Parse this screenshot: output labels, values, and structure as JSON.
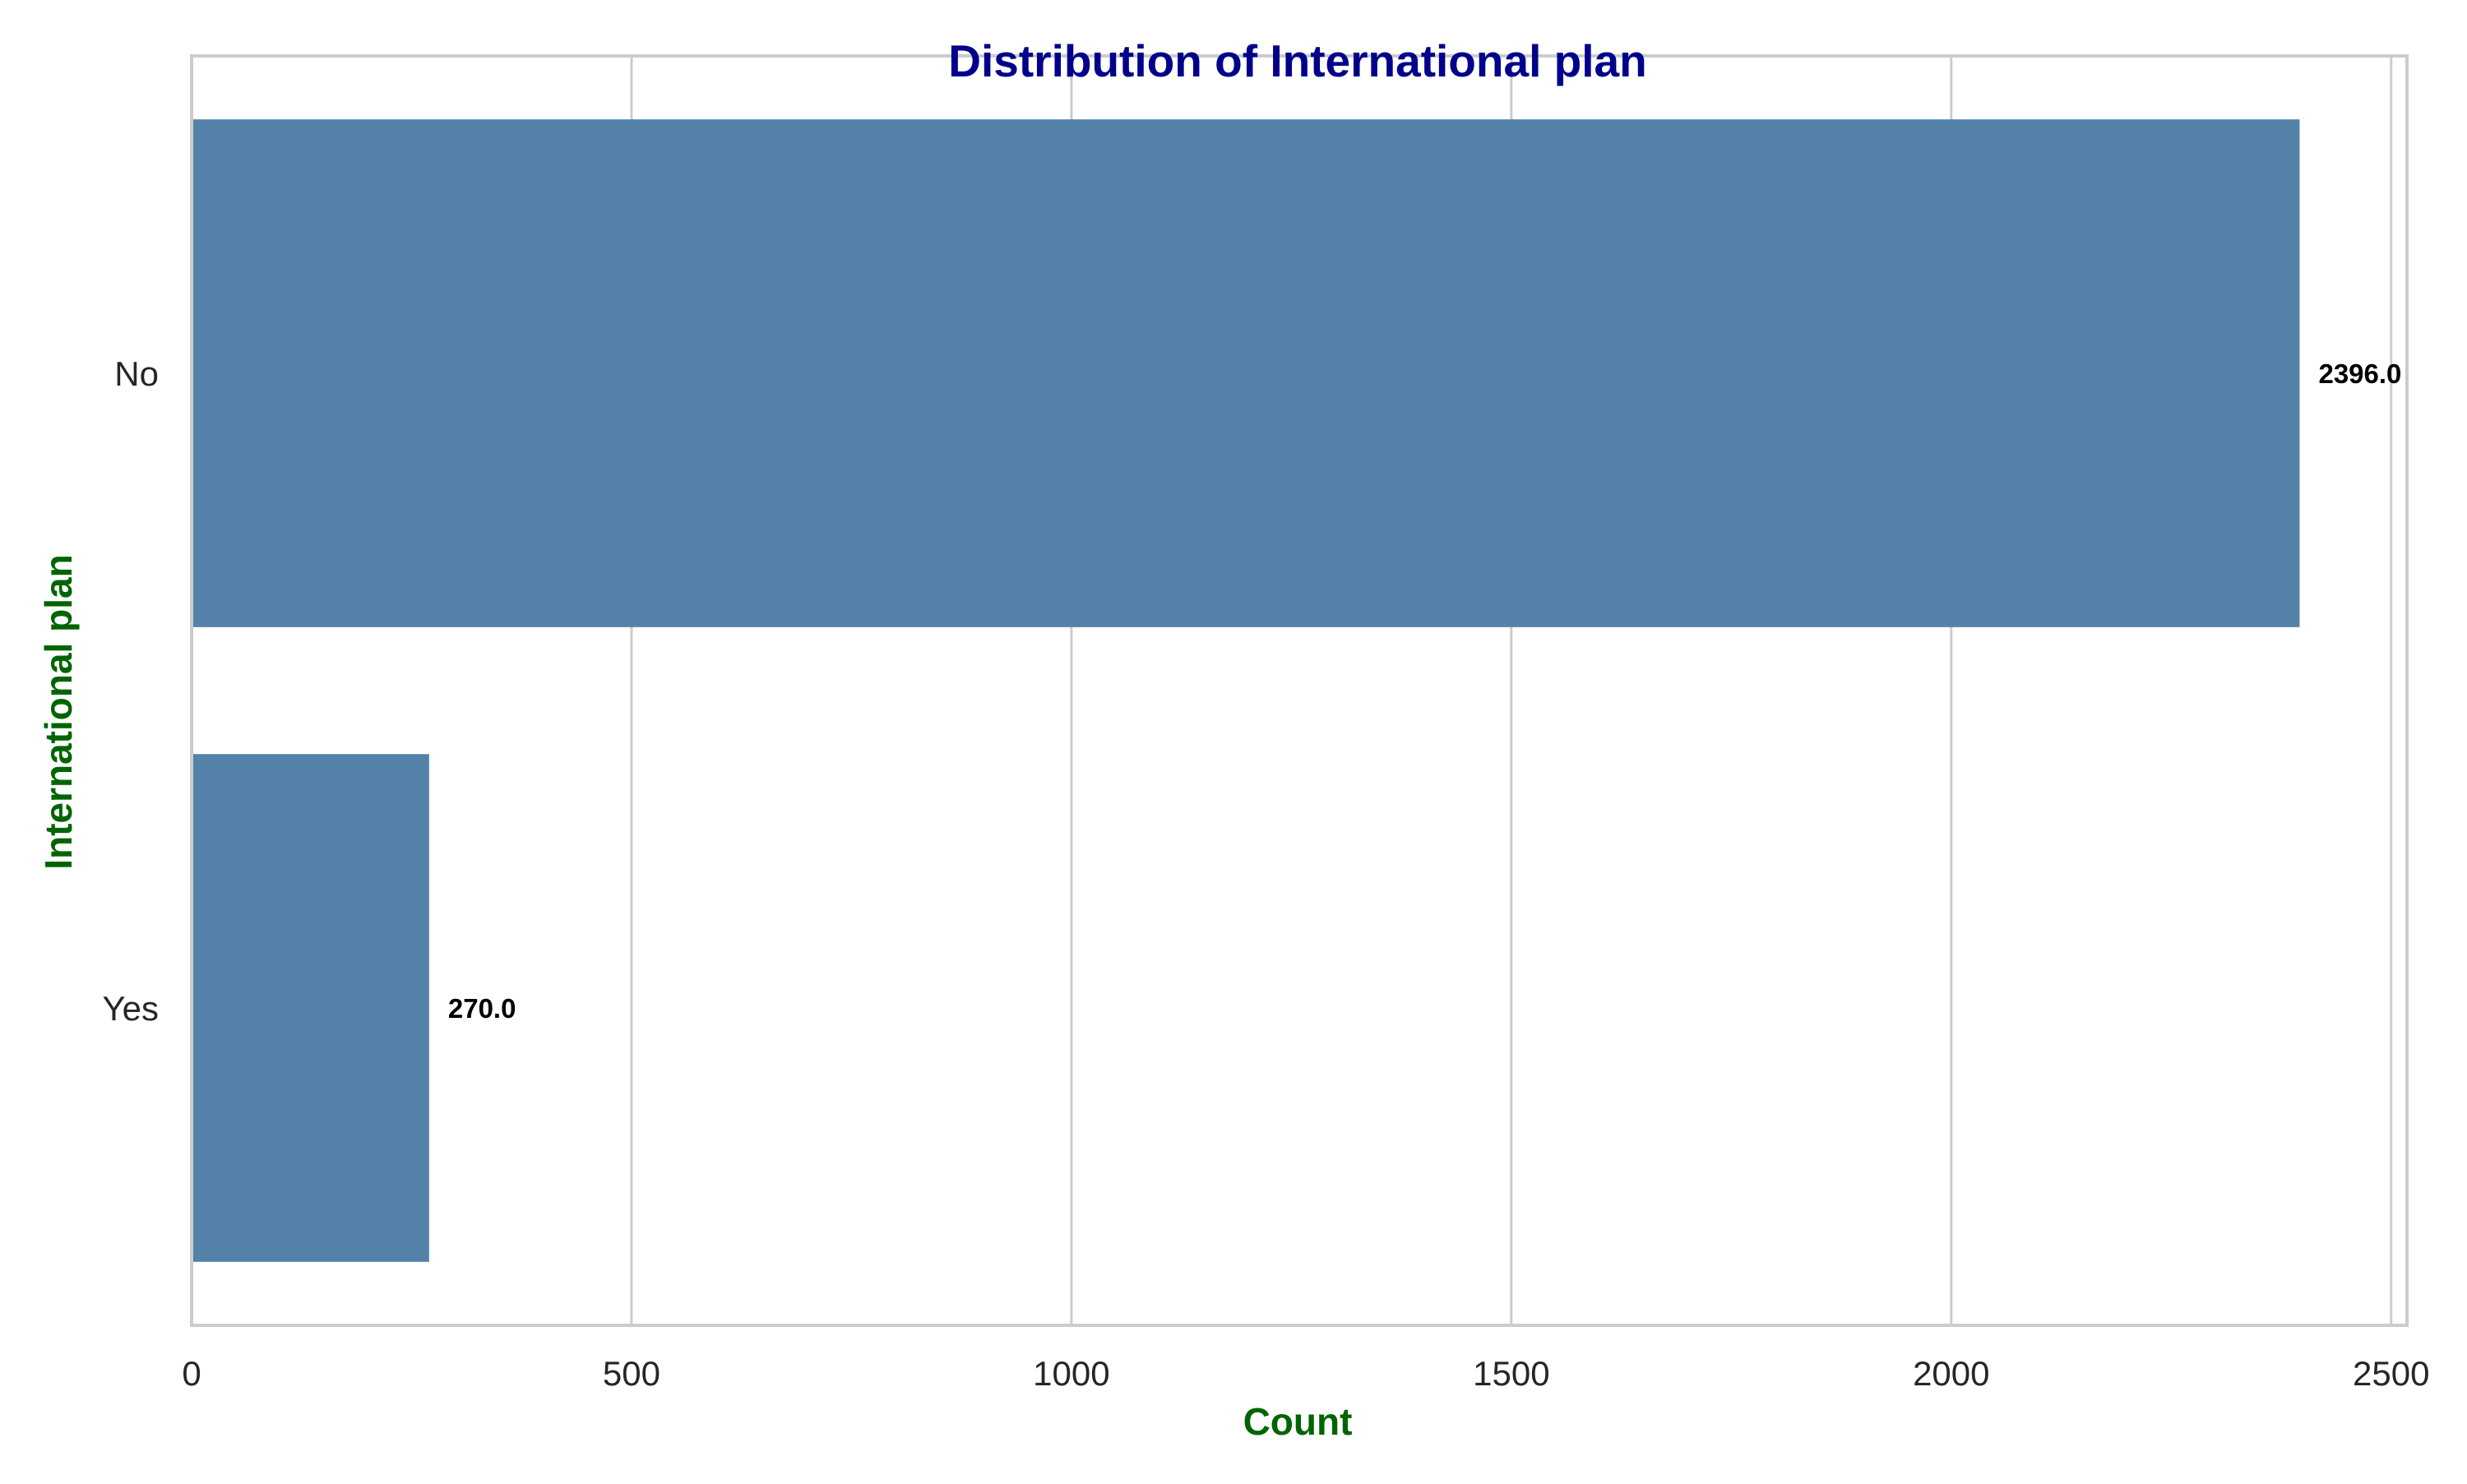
{
  "chart_data": {
    "type": "bar",
    "orientation": "horizontal",
    "title": "Distribution of International plan",
    "xlabel": "Count",
    "ylabel": "International plan",
    "categories": [
      "No",
      "Yes"
    ],
    "values": [
      2396,
      270
    ],
    "value_labels": [
      "2396.0",
      "270.0"
    ],
    "xlim": [
      0,
      2518
    ],
    "xticks": [
      0,
      500,
      1000,
      1500,
      2000,
      2500
    ],
    "xtick_labels": [
      "0",
      "500",
      "1000",
      "1500",
      "2000",
      "2500"
    ],
    "grid": true,
    "colors": {
      "bar": "#5482a8",
      "title": "#00008b",
      "axis_label": "#006400",
      "grid": "#cccccc",
      "bar_label": "#000000"
    }
  }
}
